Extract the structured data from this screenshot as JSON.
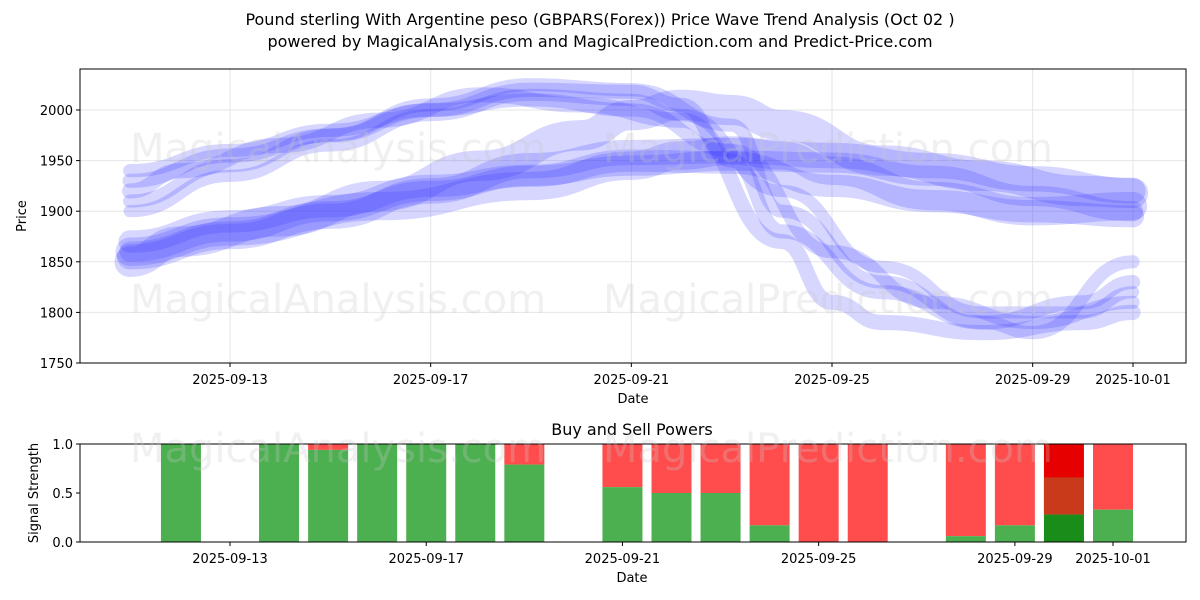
{
  "title_line1": "Pound sterling With Argentine peso (GBPARS(Forex)) Price Wave Trend Analysis (Oct 02 )",
  "title_line2": "powered by MagicalAnalysis.com and MagicalPrediction.com and Predict-Price.com",
  "watermarks": [
    "MagicalAnalysis.com",
    "MagicalPrediction.com"
  ],
  "colors": {
    "wave": "#3333ff",
    "buy": "#4caf50",
    "sell": "#ff4d4d",
    "buy_strong": "#1a8c1a",
    "sell_strong": "#e60000"
  },
  "chart_data": [
    {
      "type": "line",
      "xlabel": "Date",
      "ylabel": "Price",
      "xlim": [
        "2025-09-10",
        "2025-10-02"
      ],
      "ylim": [
        1750,
        2040
      ],
      "yticks": [
        1750,
        1800,
        1850,
        1900,
        1950,
        2000
      ],
      "xticks": [
        "2025-09-13",
        "2025-09-17",
        "2025-09-21",
        "2025-09-25",
        "2025-09-29",
        "2025-10-01"
      ],
      "grid": true,
      "series": [
        {
          "band": 30,
          "x": [
            "2025-09-11",
            "2025-09-12",
            "2025-09-14",
            "2025-09-16",
            "2025-09-18",
            "2025-09-20",
            "2025-09-21",
            "2025-09-22",
            "2025-09-23",
            "2025-09-24",
            "2025-09-26",
            "2025-09-28",
            "2025-09-30",
            "2025-10-01"
          ],
          "y": [
            1850,
            1870,
            1890,
            1915,
            1945,
            1975,
            1995,
            2005,
            2000,
            1985,
            1950,
            1935,
            1920,
            1918
          ]
        },
        {
          "band": 28,
          "x": [
            "2025-09-11",
            "2025-09-13",
            "2025-09-16",
            "2025-09-19",
            "2025-09-21",
            "2025-09-22",
            "2025-09-23",
            "2025-09-24",
            "2025-09-25",
            "2025-09-27",
            "2025-09-29",
            "2025-10-01"
          ],
          "y": [
            1860,
            1880,
            1905,
            1925,
            1945,
            1955,
            1960,
            1955,
            1940,
            1915,
            1900,
            1905
          ]
        },
        {
          "band": 25,
          "x": [
            "2025-09-11",
            "2025-09-13",
            "2025-09-15",
            "2025-09-17",
            "2025-09-19",
            "2025-09-21",
            "2025-09-23",
            "2025-09-25",
            "2025-09-27",
            "2025-09-29",
            "2025-10-01"
          ],
          "y": [
            1855,
            1875,
            1895,
            1920,
            1945,
            1958,
            1960,
            1955,
            1945,
            1932,
            1920
          ]
        },
        {
          "band": 22,
          "x": [
            "2025-09-11",
            "2025-09-13",
            "2025-09-15",
            "2025-09-17",
            "2025-09-19",
            "2025-09-21",
            "2025-09-23",
            "2025-09-25",
            "2025-09-27",
            "2025-09-29",
            "2025-10-01"
          ],
          "y": [
            1870,
            1890,
            1905,
            1925,
            1935,
            1950,
            1948,
            1925,
            1910,
            1900,
            1895
          ]
        },
        {
          "band": 20,
          "x": [
            "2025-09-11",
            "2025-09-13",
            "2025-09-15",
            "2025-09-17",
            "2025-09-19",
            "2025-09-21",
            "2025-09-23",
            "2025-09-25",
            "2025-09-27",
            "2025-09-29",
            "2025-10-01"
          ],
          "y": [
            1860,
            1880,
            1900,
            1920,
            1935,
            1945,
            1950,
            1948,
            1935,
            1915,
            1900
          ]
        },
        {
          "band": 15,
          "x": [
            "2025-09-11",
            "2025-09-12",
            "2025-09-14",
            "2025-09-16",
            "2025-09-18",
            "2025-09-20",
            "2025-09-22",
            "2025-09-24",
            "2025-09-25",
            "2025-09-26",
            "2025-09-28",
            "2025-09-30",
            "2025-10-01"
          ],
          "y": [
            1920,
            1940,
            1965,
            1990,
            2015,
            2005,
            1990,
            1870,
            1810,
            1790,
            1780,
            1790,
            1800
          ]
        },
        {
          "band": 14,
          "x": [
            "2025-09-11",
            "2025-09-13",
            "2025-09-15",
            "2025-09-17",
            "2025-09-19",
            "2025-09-21",
            "2025-09-22",
            "2025-09-23",
            "2025-09-24",
            "2025-09-26",
            "2025-09-28",
            "2025-09-30",
            "2025-10-01"
          ],
          "y": [
            1930,
            1955,
            1975,
            2000,
            2020,
            2018,
            2005,
            1950,
            1880,
            1820,
            1790,
            1810,
            1830
          ]
        },
        {
          "band": 13,
          "x": [
            "2025-09-11",
            "2025-09-13",
            "2025-09-15",
            "2025-09-17",
            "2025-09-19",
            "2025-09-21",
            "2025-09-23",
            "2025-09-24",
            "2025-09-26",
            "2025-09-28",
            "2025-09-29",
            "2025-10-01"
          ],
          "y": [
            1910,
            1945,
            1975,
            2005,
            2025,
            2020,
            1985,
            1900,
            1830,
            1790,
            1780,
            1850
          ]
        },
        {
          "band": 13,
          "x": [
            "2025-09-11",
            "2025-09-13",
            "2025-09-15",
            "2025-09-17",
            "2025-09-19",
            "2025-09-21",
            "2025-09-23",
            "2025-09-25",
            "2025-09-27",
            "2025-09-29",
            "2025-10-01"
          ],
          "y": [
            1940,
            1960,
            1980,
            2000,
            2010,
            2000,
            1960,
            1860,
            1810,
            1790,
            1810
          ]
        },
        {
          "band": 12,
          "x": [
            "2025-09-11",
            "2025-09-13",
            "2025-09-15",
            "2025-09-17",
            "2025-09-19",
            "2025-09-21",
            "2025-09-22",
            "2025-09-24",
            "2025-09-26",
            "2025-09-28",
            "2025-09-30",
            "2025-10-01"
          ],
          "y": [
            1900,
            1935,
            1965,
            1995,
            2015,
            2010,
            1995,
            1920,
            1845,
            1800,
            1800,
            1820
          ]
        }
      ]
    },
    {
      "type": "bar",
      "title": "Buy and Sell Powers",
      "xlabel": "Date",
      "ylabel": "Signal Strength",
      "ylim": [
        0,
        1.0
      ],
      "yticks": [
        "0.0",
        "0.5",
        "1.0"
      ],
      "xticks": [
        "2025-09-13",
        "2025-09-17",
        "2025-09-21",
        "2025-09-25",
        "2025-09-29",
        "2025-10-01"
      ],
      "bars": [
        {
          "date": "2025-09-12",
          "buy": 1.0
        },
        {
          "date": "2025-09-14",
          "buy": 1.0
        },
        {
          "date": "2025-09-15",
          "buy": 0.94
        },
        {
          "date": "2025-09-16",
          "buy": 1.0
        },
        {
          "date": "2025-09-17",
          "buy": 1.0
        },
        {
          "date": "2025-09-18",
          "buy": 1.0
        },
        {
          "date": "2025-09-19",
          "buy": 0.79
        },
        {
          "date": "2025-09-21",
          "buy": 0.56
        },
        {
          "date": "2025-09-22",
          "buy": 0.5
        },
        {
          "date": "2025-09-23",
          "buy": 0.5
        },
        {
          "date": "2025-09-24",
          "buy": 0.17
        },
        {
          "date": "2025-09-25",
          "buy": 0.0
        },
        {
          "date": "2025-09-26",
          "buy": 0.0
        },
        {
          "date": "2025-09-28",
          "buy": 0.06
        },
        {
          "date": "2025-09-29",
          "buy": 0.17
        },
        {
          "date": "2025-09-30",
          "buy": 0.28,
          "strong": true
        },
        {
          "date": "2025-10-01",
          "buy": 0.33
        }
      ]
    }
  ]
}
